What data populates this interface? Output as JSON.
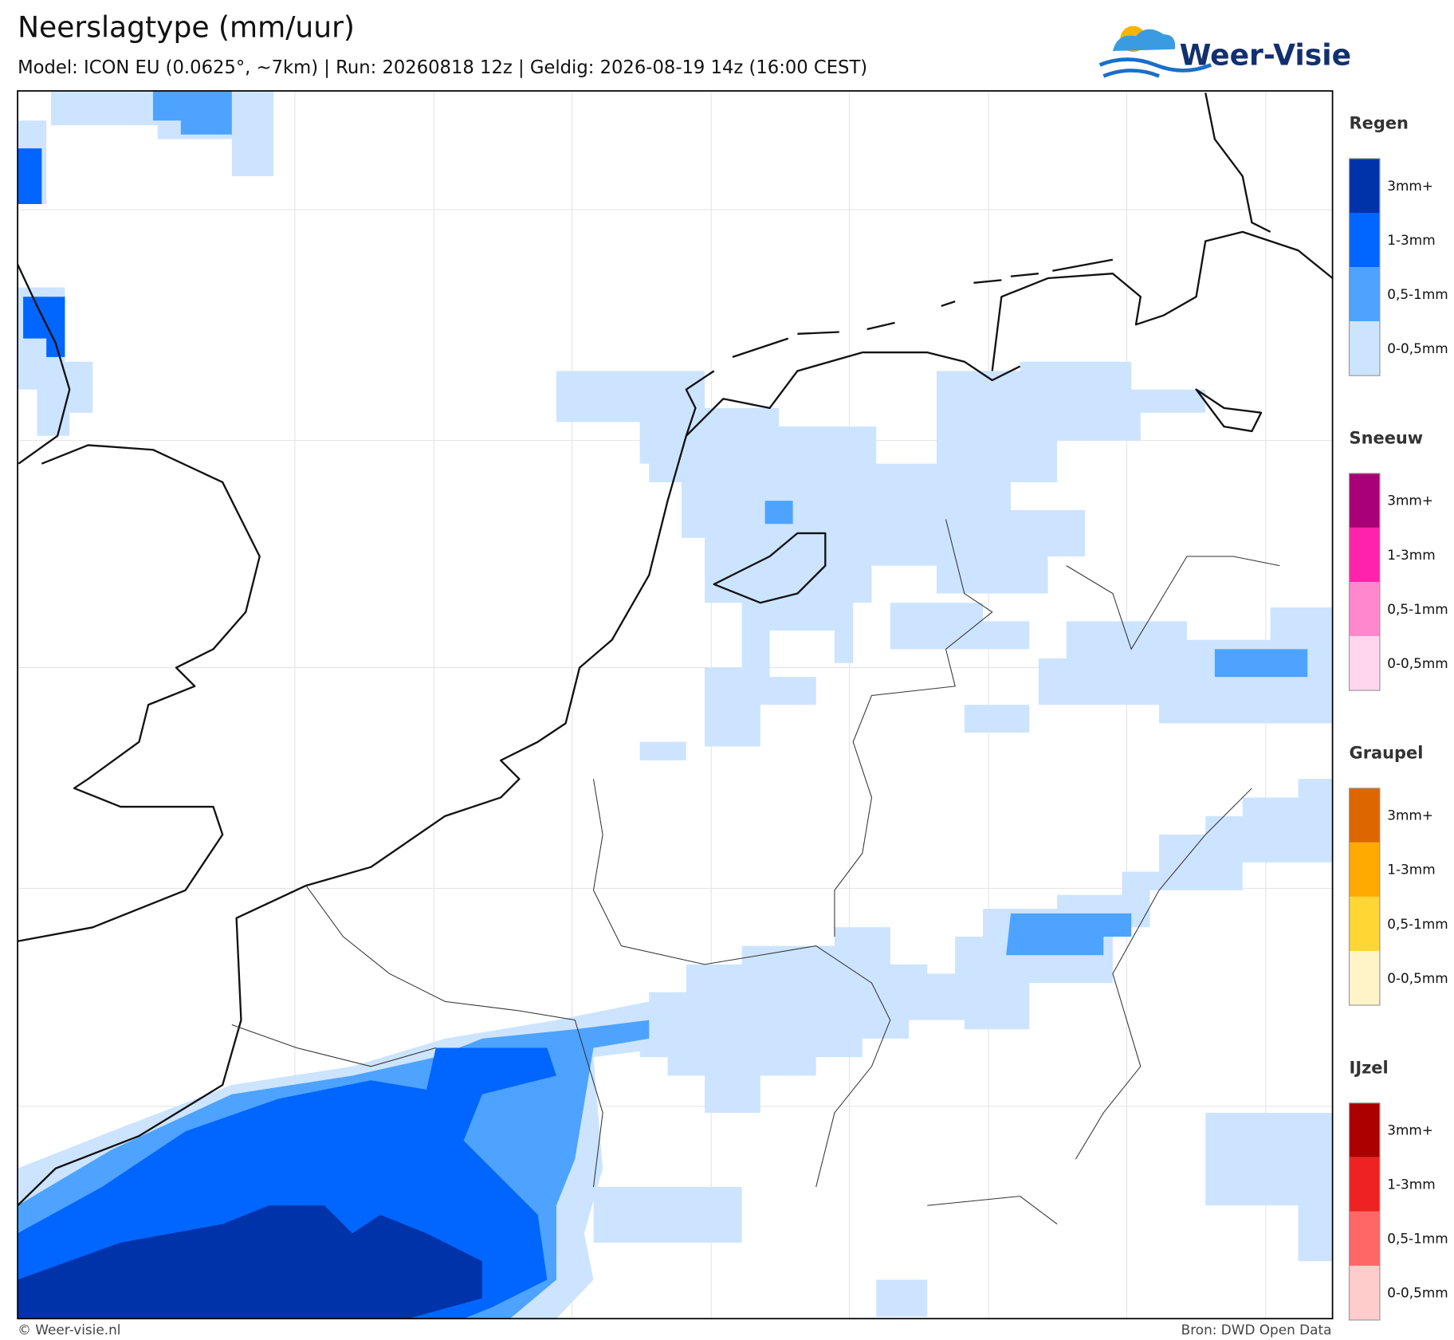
{
  "header": {
    "title": "Neerslagtype (mm/uur)",
    "subtitle": "Model: ICON EU (0.0625°, ~7km)  |  Run: 20260818 12z  |  Geldig: 2026-08-19 14z (16:00 CEST)",
    "logo": "Weer-Visie"
  },
  "legend": {
    "groups": [
      {
        "title": "Regen",
        "items": [
          {
            "label": "3mm+",
            "color": "#0033aa"
          },
          {
            "label": "1-3mm",
            "color": "#0066ff"
          },
          {
            "label": "0,5-1mm",
            "color": "#4da3ff"
          },
          {
            "label": "0-0,5mm",
            "color": "#cce4ff"
          }
        ]
      },
      {
        "title": "Sneeuw",
        "items": [
          {
            "label": "3mm+",
            "color": "#aa0077"
          },
          {
            "label": "1-3mm",
            "color": "#ff22aa"
          },
          {
            "label": "0,5-1mm",
            "color": "#ff88cc"
          },
          {
            "label": "0-0,5mm",
            "color": "#ffd6ee"
          }
        ]
      },
      {
        "title": "Graupel",
        "items": [
          {
            "label": "3mm+",
            "color": "#dd6600"
          },
          {
            "label": "1-3mm",
            "color": "#ffaa00"
          },
          {
            "label": "0,5-1mm",
            "color": "#ffd633"
          },
          {
            "label": "0-0,5mm",
            "color": "#fff3c8"
          }
        ]
      },
      {
        "title": "IJzel",
        "items": [
          {
            "label": "3mm+",
            "color": "#aa0000"
          },
          {
            "label": "1-3mm",
            "color": "#ee2222"
          },
          {
            "label": "0,5-1mm",
            "color": "#ff6666"
          },
          {
            "label": "0-0,5mm",
            "color": "#ffcccc"
          }
        ]
      }
    ]
  },
  "footer": {
    "left": "© Weer-visie.nl",
    "right": "Bron: DWD Open Data"
  }
}
